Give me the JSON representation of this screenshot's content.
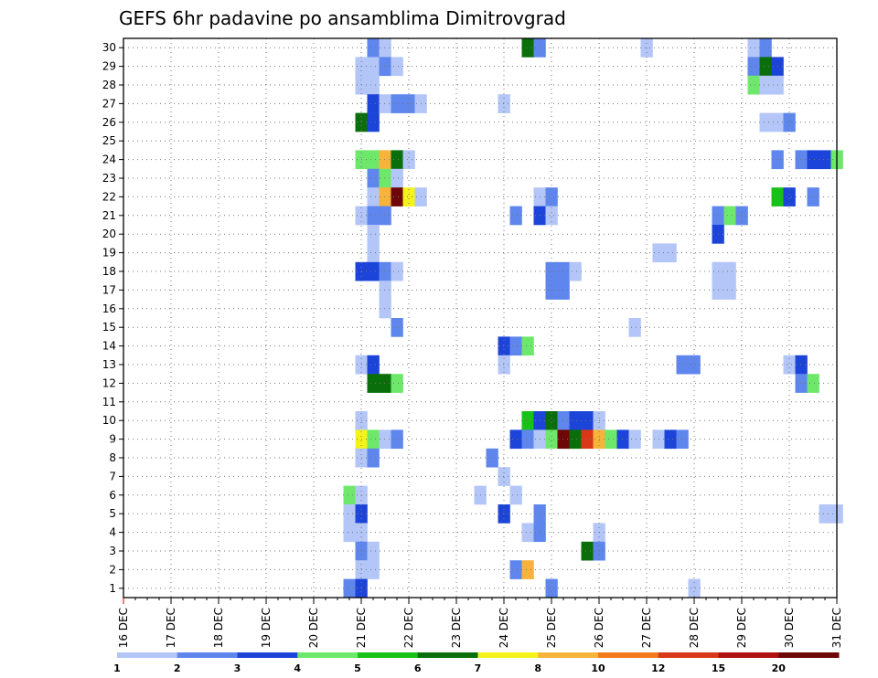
{
  "chart_data": {
    "type": "heatmap",
    "title": "GEFS 6hr padavine po ansamblima Dimitrovgrad",
    "y_categories": [
      "1",
      "2",
      "3",
      "4",
      "5",
      "6",
      "7",
      "8",
      "9",
      "10",
      "11",
      "12",
      "13",
      "14",
      "15",
      "16",
      "17",
      "18",
      "19",
      "20",
      "21",
      "22",
      "23",
      "24",
      "25",
      "26",
      "27",
      "28",
      "29",
      "30"
    ],
    "x_tick_labels": [
      "16 DEC",
      "17 DEC",
      "18 DEC",
      "19 DEC",
      "20 DEC",
      "21 DEC",
      "22 DEC",
      "23 DEC",
      "24 DEC",
      "25 DEC",
      "26 DEC",
      "27 DEC",
      "28 DEC",
      "29 DEC",
      "30 DEC",
      "31 DEC"
    ],
    "x_unit": "6-hour steps from 16 DEC 00z",
    "xlim": [
      0,
      60
    ],
    "grid": true,
    "colorbar": {
      "bins": [
        {
          "color": "#b3c6f7",
          "from": 1,
          "to": 2
        },
        {
          "color": "#5e86ec",
          "from": 2,
          "to": 3
        },
        {
          "color": "#1c44d8",
          "from": 3,
          "to": 4
        },
        {
          "color": "#6ee86a",
          "from": 4,
          "to": 5
        },
        {
          "color": "#16c216",
          "from": 5,
          "to": 6
        },
        {
          "color": "#0a6e0a",
          "from": 6,
          "to": 7
        },
        {
          "color": "#f4f41a",
          "from": 7,
          "to": 8
        },
        {
          "color": "#f8b43a",
          "from": 8,
          "to": 10
        },
        {
          "color": "#f47a1a",
          "from": 10,
          "to": 12
        },
        {
          "color": "#d83818",
          "from": 12,
          "to": 15
        },
        {
          "color": "#b01010",
          "from": 15,
          "to": 20
        },
        {
          "color": "#6e0808",
          "from": 20,
          "to": 30
        }
      ],
      "tick_labels": [
        "1",
        "2",
        "3",
        "4",
        "5",
        "6",
        "7",
        "8",
        "10",
        "12",
        "15",
        "20"
      ]
    },
    "cells": [
      {
        "m": 30,
        "t": 21,
        "v": 2.5
      },
      {
        "m": 30,
        "t": 22,
        "v": 1.5
      },
      {
        "m": 30,
        "t": 34,
        "v": 6.5
      },
      {
        "m": 30,
        "t": 35,
        "v": 2.5
      },
      {
        "m": 30,
        "t": 44,
        "v": 1.5
      },
      {
        "m": 30,
        "t": 53,
        "v": 1.5
      },
      {
        "m": 30,
        "t": 54,
        "v": 2.5
      },
      {
        "m": 29,
        "t": 20,
        "v": 1.5
      },
      {
        "m": 29,
        "t": 21,
        "v": 1.5
      },
      {
        "m": 29,
        "t": 22,
        "v": 2.5
      },
      {
        "m": 29,
        "t": 23,
        "v": 1.5
      },
      {
        "m": 29,
        "t": 53,
        "v": 2.5
      },
      {
        "m": 29,
        "t": 54,
        "v": 6.5
      },
      {
        "m": 29,
        "t": 55,
        "v": 3.5
      },
      {
        "m": 28,
        "t": 20,
        "v": 1.5
      },
      {
        "m": 28,
        "t": 21,
        "v": 1.5
      },
      {
        "m": 28,
        "t": 53,
        "v": 4.5
      },
      {
        "m": 28,
        "t": 54,
        "v": 1.5
      },
      {
        "m": 28,
        "t": 55,
        "v": 1.5
      },
      {
        "m": 27,
        "t": 21,
        "v": 3.5
      },
      {
        "m": 27,
        "t": 22,
        "v": 1.5
      },
      {
        "m": 27,
        "t": 23,
        "v": 2.5
      },
      {
        "m": 27,
        "t": 24,
        "v": 2.5
      },
      {
        "m": 27,
        "t": 25,
        "v": 1.5
      },
      {
        "m": 27,
        "t": 32,
        "v": 1.5
      },
      {
        "m": 26,
        "t": 20,
        "v": 6.5
      },
      {
        "m": 26,
        "t": 21,
        "v": 3.5
      },
      {
        "m": 26,
        "t": 54,
        "v": 1.5
      },
      {
        "m": 26,
        "t": 55,
        "v": 1.5
      },
      {
        "m": 26,
        "t": 56,
        "v": 2.5
      },
      {
        "m": 24,
        "t": 20,
        "v": 4.5
      },
      {
        "m": 24,
        "t": 21,
        "v": 4.5
      },
      {
        "m": 24,
        "t": 22,
        "v": 9
      },
      {
        "m": 24,
        "t": 23,
        "v": 6.5
      },
      {
        "m": 24,
        "t": 24,
        "v": 1.5
      },
      {
        "m": 24,
        "t": 55,
        "v": 2.5
      },
      {
        "m": 24,
        "t": 57,
        "v": 2.5
      },
      {
        "m": 24,
        "t": 58,
        "v": 3.5
      },
      {
        "m": 24,
        "t": 59,
        "v": 3.5
      },
      {
        "m": 24,
        "t": 60,
        "v": 4.5
      },
      {
        "m": 23,
        "t": 21,
        "v": 2.5
      },
      {
        "m": 23,
        "t": 22,
        "v": 4.5
      },
      {
        "m": 23,
        "t": 23,
        "v": 1.5
      },
      {
        "m": 22,
        "t": 21,
        "v": 1.5
      },
      {
        "m": 22,
        "t": 22,
        "v": 9
      },
      {
        "m": 22,
        "t": 23,
        "v": 25
      },
      {
        "m": 22,
        "t": 24,
        "v": 7.5
      },
      {
        "m": 22,
        "t": 25,
        "v": 1.5
      },
      {
        "m": 22,
        "t": 35,
        "v": 1.5
      },
      {
        "m": 22,
        "t": 36,
        "v": 2.5
      },
      {
        "m": 22,
        "t": 55,
        "v": 5.5
      },
      {
        "m": 22,
        "t": 56,
        "v": 3.5
      },
      {
        "m": 22,
        "t": 58,
        "v": 2.5
      },
      {
        "m": 21,
        "t": 20,
        "v": 1.5
      },
      {
        "m": 21,
        "t": 21,
        "v": 2.5
      },
      {
        "m": 21,
        "t": 22,
        "v": 2.5
      },
      {
        "m": 21,
        "t": 33,
        "v": 2.5
      },
      {
        "m": 21,
        "t": 35,
        "v": 3.5
      },
      {
        "m": 21,
        "t": 36,
        "v": 1.5
      },
      {
        "m": 21,
        "t": 50,
        "v": 2.5
      },
      {
        "m": 21,
        "t": 51,
        "v": 4.5
      },
      {
        "m": 21,
        "t": 52,
        "v": 2.5
      },
      {
        "m": 20,
        "t": 21,
        "v": 1.5
      },
      {
        "m": 20,
        "t": 50,
        "v": 3.5
      },
      {
        "m": 19,
        "t": 21,
        "v": 1.5
      },
      {
        "m": 19,
        "t": 45,
        "v": 1.5
      },
      {
        "m": 19,
        "t": 46,
        "v": 1.5
      },
      {
        "m": 18,
        "t": 20,
        "v": 3.5
      },
      {
        "m": 18,
        "t": 21,
        "v": 3.5
      },
      {
        "m": 18,
        "t": 22,
        "v": 2.5
      },
      {
        "m": 18,
        "t": 23,
        "v": 1.5
      },
      {
        "m": 18,
        "t": 36,
        "v": 2.5
      },
      {
        "m": 18,
        "t": 37,
        "v": 2.5
      },
      {
        "m": 18,
        "t": 38,
        "v": 1.5
      },
      {
        "m": 18,
        "t": 50,
        "v": 1.5
      },
      {
        "m": 18,
        "t": 51,
        "v": 1.5
      },
      {
        "m": 17,
        "t": 22,
        "v": 1.5
      },
      {
        "m": 17,
        "t": 36,
        "v": 2.5
      },
      {
        "m": 17,
        "t": 37,
        "v": 2.5
      },
      {
        "m": 17,
        "t": 50,
        "v": 1.5
      },
      {
        "m": 17,
        "t": 51,
        "v": 1.5
      },
      {
        "m": 16,
        "t": 22,
        "v": 1.5
      },
      {
        "m": 15,
        "t": 23,
        "v": 2.5
      },
      {
        "m": 15,
        "t": 43,
        "v": 1.5
      },
      {
        "m": 14,
        "t": 32,
        "v": 3.5
      },
      {
        "m": 14,
        "t": 33,
        "v": 2.5
      },
      {
        "m": 14,
        "t": 34,
        "v": 4.5
      },
      {
        "m": 13,
        "t": 20,
        "v": 1.5
      },
      {
        "m": 13,
        "t": 21,
        "v": 3.5
      },
      {
        "m": 13,
        "t": 32,
        "v": 1.5
      },
      {
        "m": 13,
        "t": 47,
        "v": 2.5
      },
      {
        "m": 13,
        "t": 48,
        "v": 2.5
      },
      {
        "m": 13,
        "t": 56,
        "v": 1.5
      },
      {
        "m": 13,
        "t": 57,
        "v": 3.5
      },
      {
        "m": 12,
        "t": 21,
        "v": 6.5
      },
      {
        "m": 12,
        "t": 22,
        "v": 6.5
      },
      {
        "m": 12,
        "t": 23,
        "v": 4.5
      },
      {
        "m": 12,
        "t": 57,
        "v": 2.5
      },
      {
        "m": 12,
        "t": 58,
        "v": 4.5
      },
      {
        "m": 10,
        "t": 20,
        "v": 1.5
      },
      {
        "m": 10,
        "t": 34,
        "v": 5.5
      },
      {
        "m": 10,
        "t": 35,
        "v": 3.5
      },
      {
        "m": 10,
        "t": 36,
        "v": 6.5
      },
      {
        "m": 10,
        "t": 37,
        "v": 2.5
      },
      {
        "m": 10,
        "t": 38,
        "v": 3.5
      },
      {
        "m": 10,
        "t": 39,
        "v": 3.5
      },
      {
        "m": 10,
        "t": 40,
        "v": 1.5
      },
      {
        "m": 9,
        "t": 20,
        "v": 7.5
      },
      {
        "m": 9,
        "t": 21,
        "v": 4.5
      },
      {
        "m": 9,
        "t": 22,
        "v": 1.5
      },
      {
        "m": 9,
        "t": 23,
        "v": 2.5
      },
      {
        "m": 9,
        "t": 33,
        "v": 3.5
      },
      {
        "m": 9,
        "t": 34,
        "v": 2.5
      },
      {
        "m": 9,
        "t": 35,
        "v": 1.5
      },
      {
        "m": 9,
        "t": 36,
        "v": 4.5
      },
      {
        "m": 9,
        "t": 37,
        "v": 25
      },
      {
        "m": 9,
        "t": 38,
        "v": 6.5
      },
      {
        "m": 9,
        "t": 39,
        "v": 13
      },
      {
        "m": 9,
        "t": 40,
        "v": 9
      },
      {
        "m": 9,
        "t": 41,
        "v": 4.5
      },
      {
        "m": 9,
        "t": 42,
        "v": 3.5
      },
      {
        "m": 9,
        "t": 43,
        "v": 1.5
      },
      {
        "m": 9,
        "t": 45,
        "v": 1.5
      },
      {
        "m": 9,
        "t": 46,
        "v": 3.5
      },
      {
        "m": 9,
        "t": 47,
        "v": 2.5
      },
      {
        "m": 8,
        "t": 20,
        "v": 1.5
      },
      {
        "m": 8,
        "t": 21,
        "v": 2.5
      },
      {
        "m": 8,
        "t": 31,
        "v": 2.5
      },
      {
        "m": 7,
        "t": 32,
        "v": 1.5
      },
      {
        "m": 6,
        "t": 19,
        "v": 4.5
      },
      {
        "m": 6,
        "t": 20,
        "v": 1.5
      },
      {
        "m": 6,
        "t": 30,
        "v": 1.5
      },
      {
        "m": 6,
        "t": 33,
        "v": 1.5
      },
      {
        "m": 5,
        "t": 19,
        "v": 1.5
      },
      {
        "m": 5,
        "t": 20,
        "v": 3.5
      },
      {
        "m": 5,
        "t": 32,
        "v": 3.5
      },
      {
        "m": 5,
        "t": 35,
        "v": 2.5
      },
      {
        "m": 5,
        "t": 59,
        "v": 1.5
      },
      {
        "m": 5,
        "t": 60,
        "v": 1.5
      },
      {
        "m": 4,
        "t": 19,
        "v": 1.5
      },
      {
        "m": 4,
        "t": 20,
        "v": 1.5
      },
      {
        "m": 4,
        "t": 34,
        "v": 1.5
      },
      {
        "m": 4,
        "t": 35,
        "v": 2.5
      },
      {
        "m": 4,
        "t": 40,
        "v": 1.5
      },
      {
        "m": 3,
        "t": 20,
        "v": 2.5
      },
      {
        "m": 3,
        "t": 21,
        "v": 1.5
      },
      {
        "m": 3,
        "t": 39,
        "v": 6.5
      },
      {
        "m": 3,
        "t": 40,
        "v": 2.5
      },
      {
        "m": 2,
        "t": 20,
        "v": 1.5
      },
      {
        "m": 2,
        "t": 21,
        "v": 1.5
      },
      {
        "m": 2,
        "t": 33,
        "v": 2.5
      },
      {
        "m": 2,
        "t": 34,
        "v": 9
      },
      {
        "m": 1,
        "t": 19,
        "v": 2.5
      },
      {
        "m": 1,
        "t": 20,
        "v": 3.5
      },
      {
        "m": 1,
        "t": 36,
        "v": 2.5
      },
      {
        "m": 1,
        "t": 48,
        "v": 1.5
      }
    ]
  }
}
